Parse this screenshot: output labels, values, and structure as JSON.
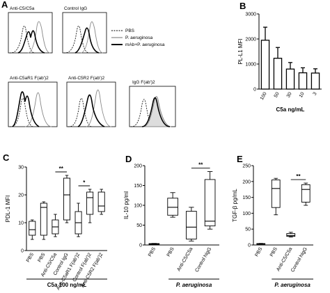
{
  "panel_a": {
    "letter": "A",
    "histograms": [
      {
        "title": "Anti-C5/C5a"
      },
      {
        "title": "Control IgG"
      },
      {
        "title": "Anti-C5aR1 F(ab')2"
      },
      {
        "title": "Anti-C5R2 F(ab')2"
      },
      {
        "title": "IgG F(ab')2"
      }
    ],
    "legend": [
      {
        "label": "PBS",
        "style": "dashed"
      },
      {
        "label": "P. aeruginosa",
        "style": "gray"
      },
      {
        "label": "mAb+P. aeruginosa",
        "style": "thick"
      }
    ]
  },
  "chart_data": [
    {
      "panel": "B",
      "type": "bar",
      "ylabel": "PL-L1 MFI",
      "xlabel": "C5a ng/mL",
      "ylim": [
        0,
        3000
      ],
      "yticks": [
        0,
        1000,
        2000,
        3000
      ],
      "categories": [
        "100",
        "50",
        "30",
        "10",
        "3"
      ],
      "values": [
        1950,
        1230,
        800,
        650,
        640
      ],
      "errors": [
        520,
        430,
        260,
        200,
        170
      ]
    },
    {
      "panel": "C",
      "type": "boxplot",
      "ylabel": "PDL-1 MFI",
      "xlabel": "C5a 100 ng/mL",
      "ylim": [
        0,
        30
      ],
      "yticks": [
        0,
        10,
        20,
        30
      ],
      "categories": [
        "PBS",
        "PBS",
        "Anti-C5/C5a",
        "Control IgG",
        "Anti-C5aR1 F(ab')2",
        "Control F(ab')2",
        "Anti-C5R2 F(ab')2"
      ],
      "boxes": [
        {
          "min": 4,
          "q1": 5.5,
          "median": 7.5,
          "q3": 10.5,
          "max": 11
        },
        {
          "min": 4,
          "q1": 5.5,
          "median": 15.5,
          "q3": 17,
          "max": 17.5
        },
        {
          "min": 5,
          "q1": 6,
          "median": 8.5,
          "q3": 11,
          "max": 13
        },
        {
          "min": 10,
          "q1": 11,
          "median": 20,
          "q3": 26,
          "max": 27
        },
        {
          "min": 5,
          "q1": 6,
          "median": 10,
          "q3": 14,
          "max": 17
        },
        {
          "min": 10,
          "q1": 13,
          "median": 19,
          "q3": 21,
          "max": 22
        },
        {
          "min": 13,
          "q1": 14,
          "median": 16,
          "q3": 21,
          "max": 22
        }
      ],
      "significance": [
        {
          "from": 2,
          "to": 3,
          "label": "**"
        },
        {
          "from": 4,
          "to": 5,
          "label": "*"
        }
      ]
    },
    {
      "panel": "D",
      "type": "boxplot",
      "ylabel": "IL-10 pg/ml",
      "xlabel": "P. aeruginosa",
      "ylim": [
        0,
        200
      ],
      "yticks": [
        0,
        50,
        100,
        150,
        200
      ],
      "categories": [
        "PBS",
        "PBS",
        "Anti-C5/C5a",
        "Control hIgG"
      ],
      "boxes": [
        {
          "min": 2,
          "q1": 2.5,
          "median": 3,
          "q3": 3.5,
          "max": 4
        },
        {
          "min": 70,
          "q1": 75,
          "median": 95,
          "q3": 118,
          "max": 132
        },
        {
          "min": 10,
          "q1": 15,
          "median": 45,
          "q3": 85,
          "max": 95
        },
        {
          "min": 40,
          "q1": 48,
          "median": 60,
          "q3": 165,
          "max": 185
        }
      ],
      "significance": [
        {
          "from": 2,
          "to": 3,
          "label": "**"
        }
      ]
    },
    {
      "panel": "E",
      "type": "boxplot",
      "ylabel": "TGF-β pg/mL",
      "xlabel": "P. aeruginosa",
      "ylim": [
        0,
        250
      ],
      "yticks": [
        0,
        50,
        100,
        150,
        200,
        250
      ],
      "categories": [
        "PBS",
        "PBS",
        "Anti-C5/C5a",
        "Control hIgG"
      ],
      "boxes": [
        {
          "min": 3,
          "q1": 3.5,
          "median": 4,
          "q3": 4.5,
          "max": 5
        },
        {
          "min": 95,
          "q1": 118,
          "median": 178,
          "q3": 205,
          "max": 210
        },
        {
          "min": 25,
          "q1": 27,
          "median": 30,
          "q3": 36,
          "max": 40
        },
        {
          "min": 125,
          "q1": 135,
          "median": 175,
          "q3": 190,
          "max": 195
        }
      ],
      "significance": [
        {
          "from": 2,
          "to": 3,
          "label": "**"
        }
      ]
    }
  ]
}
